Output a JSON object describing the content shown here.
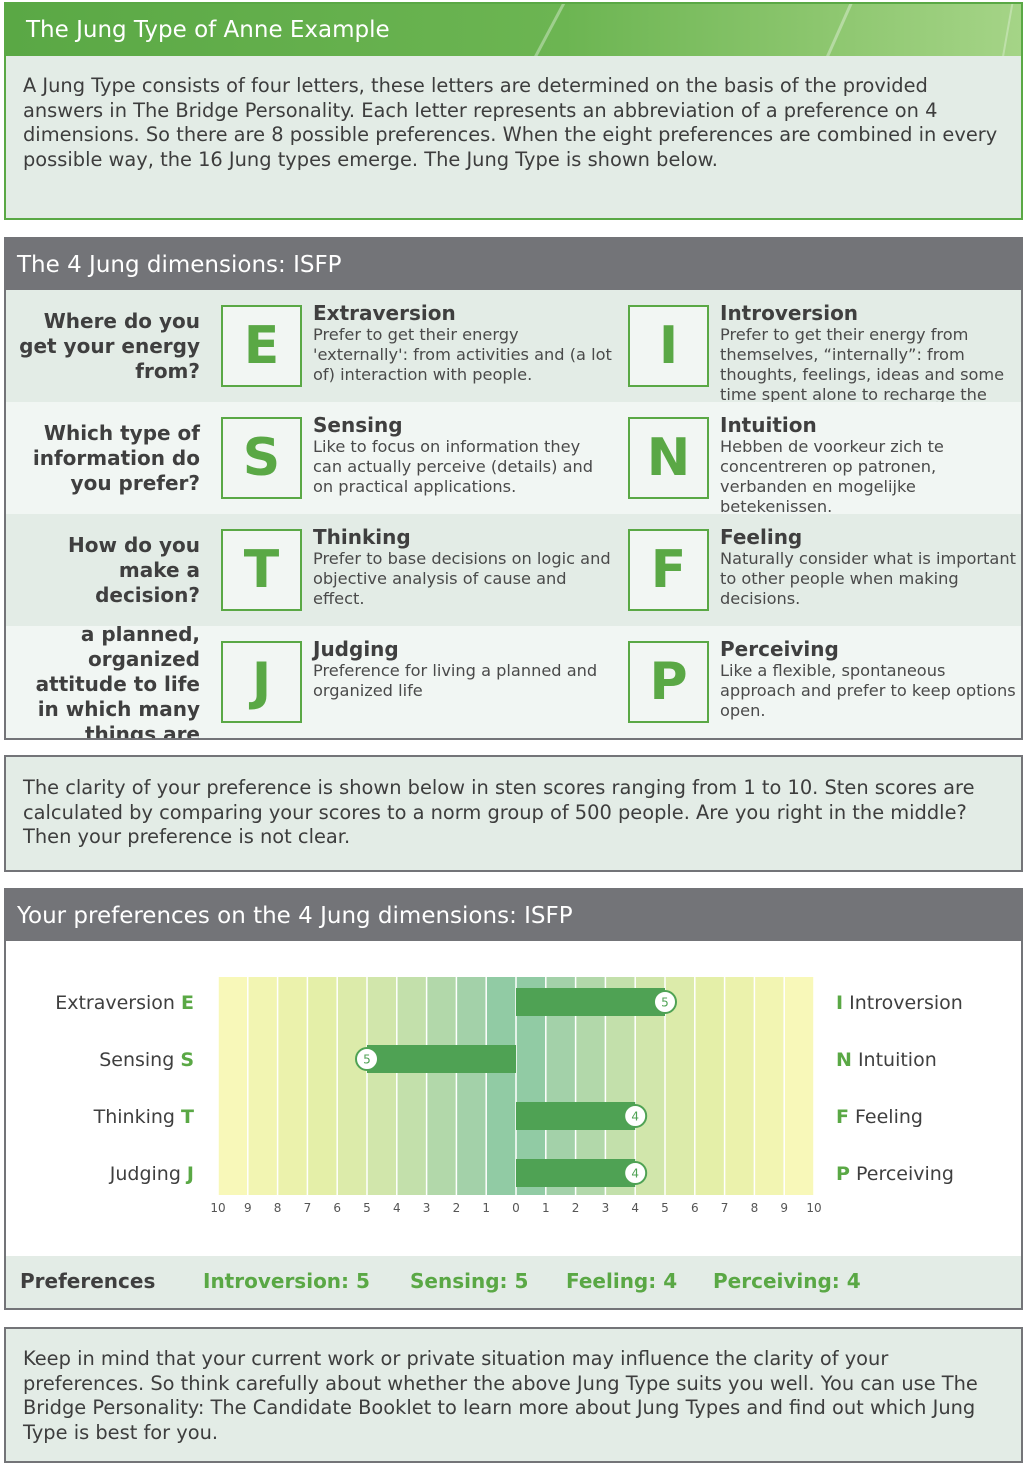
{
  "intro": {
    "title": "The Jung Type of Anne Example",
    "text": "A Jung Type consists of four letters, these letters are determined on the basis of the provided answers  in The Bridge Personality. Each letter represents an abbreviation of a preference on 4 dimensions. So there are 8 possible preferences. When the eight preferences are combined in every possible way, the 16 Jung types emerge. The Jung Type is shown below."
  },
  "dimensions": {
    "title": "The 4 Jung dimensions: ISFP",
    "rows": [
      {
        "question": "Where do you get your energy from?",
        "left": {
          "letter": "E",
          "title": "Extraversion",
          "text": "Prefer to get their energy 'externally': from activities and (a lot of) interaction with people."
        },
        "right": {
          "letter": "I",
          "title": "Introversion",
          "text": "Prefer to get their energy from themselves, “internally”: from thoughts, feelings, ideas and some time spent alone to recharge the"
        }
      },
      {
        "question": "Which type of information do you prefer?",
        "left": {
          "letter": "S",
          "title": "Sensing",
          "text": "Like to focus on information they can actually perceive (details) and on practical applications."
        },
        "right": {
          "letter": "N",
          "title": "Intuition",
          "text": "Hebben de voorkeur zich te concentreren op patronen, verbanden en mogelijke betekenissen."
        }
      },
      {
        "question": "How do you make a decision?",
        "left": {
          "letter": "T",
          "title": "Thinking",
          "text": "Prefer to base decisions on logic and objective analysis of cause and effect."
        },
        "right": {
          "letter": "F",
          "title": "Feeling",
          "text": "Naturally consider what is important to other people when making decisions."
        }
      },
      {
        "question": "a planned, organized attitude to life in which many things are",
        "left": {
          "letter": "J",
          "title": "Judging",
          "text": "Preference for living a planned and organized life"
        },
        "right": {
          "letter": "P",
          "title": "Perceiving",
          "text": "Like a flexible, spontaneous approach and prefer to keep options open."
        }
      }
    ]
  },
  "clarity": {
    "text": "The clarity of your preference is shown below in sten scores ranging from 1 to 10. Sten scores are calculated by comparing your scores to a norm group of 500 people. Are you right in the middle? Then your preference is not clear."
  },
  "preferences": {
    "title": "Your preferences on the 4 Jung dimensions: ISFP",
    "footer_label": "Preferences",
    "footer_values": [
      "Introversion: 5",
      "Sensing: 5",
      "Feeling: 4",
      "Perceiving: 4"
    ]
  },
  "chart_data": {
    "type": "bar",
    "orientation": "horizontal-diverging",
    "xlim": [
      -10,
      10
    ],
    "x_tick_labels": [
      "10",
      "9",
      "8",
      "7",
      "6",
      "5",
      "4",
      "3",
      "2",
      "1",
      "0",
      "1",
      "2",
      "3",
      "4",
      "5",
      "6",
      "7",
      "8",
      "9",
      "10"
    ],
    "rows": [
      {
        "left_label": "Extraversion",
        "left_letter": "E",
        "right_label": "Introversion",
        "right_letter": "I",
        "side": "right",
        "value": 5,
        "value_label": "5"
      },
      {
        "left_label": "Sensing",
        "left_letter": "S",
        "right_label": "Intuition",
        "right_letter": "N",
        "side": "left",
        "value": 5,
        "value_label": "5"
      },
      {
        "left_label": "Thinking",
        "left_letter": "T",
        "right_label": "Feeling",
        "right_letter": "F",
        "side": "right",
        "value": 4,
        "value_label": "4"
      },
      {
        "left_label": "Judging",
        "left_letter": "J",
        "right_label": "Perceiving",
        "right_letter": "P",
        "side": "right",
        "value": 4,
        "value_label": "4"
      }
    ],
    "colors": {
      "bar": "#4fa254",
      "accent": "#5aa845"
    },
    "band_colors": [
      "#fdfbc2",
      "#f8f8b9",
      "#f2f5b2",
      "#ebf2ac",
      "#e4efa8",
      "#dcebaa",
      "#d1e6ab",
      "#c3e0ab",
      "#b2d8aa",
      "#a3d1a9",
      "#91cba4"
    ]
  },
  "outro": {
    "text": "Keep in mind that your current work or private situation may influence the clarity of your preferences. So think carefully about whether the above Jung Type suits you well. You can use The Bridge Personality: The Candidate Booklet to learn more about Jung Types and find out which Jung Type is best for you."
  }
}
